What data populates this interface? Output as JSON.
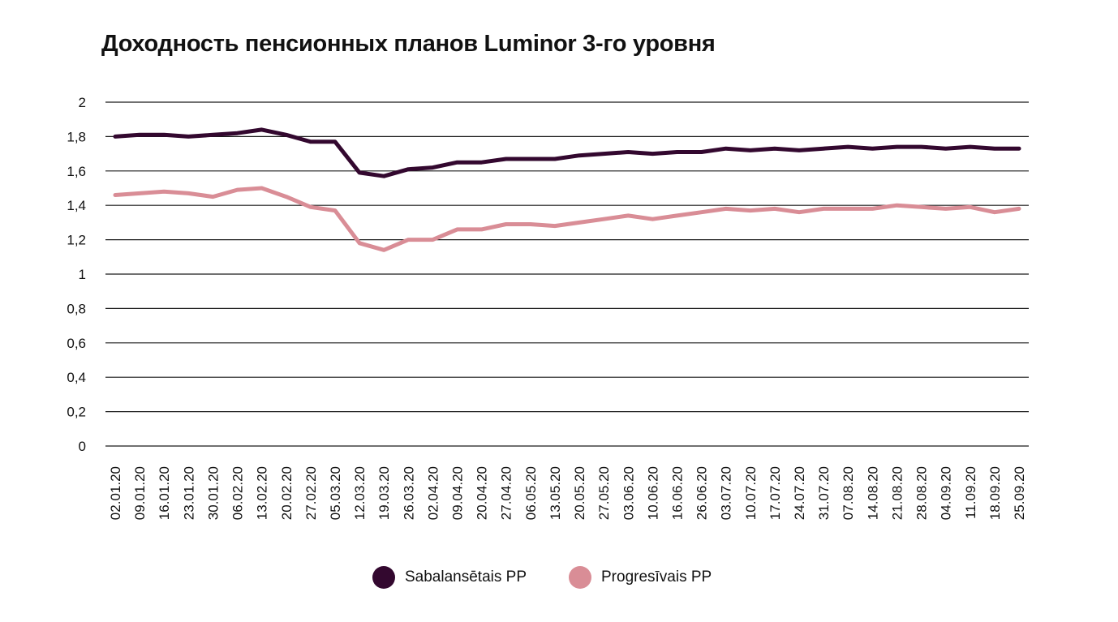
{
  "colors": {
    "series_dark": "#33082f",
    "series_light": "#d98d96",
    "gridline": "#1a1a1a",
    "text": "#111111"
  },
  "chart_data": {
    "type": "line",
    "title": "Доходность пенсионных планов Luminor 3-го уровня",
    "xlabel": "",
    "ylabel": "",
    "ylim": [
      0,
      2
    ],
    "yticks": [
      "0",
      "0,2",
      "0,4",
      "0,6",
      "0,8",
      "1",
      "1,2",
      "1,4",
      "1,6",
      "1,8",
      "2"
    ],
    "grid": true,
    "legend_position": "bottom",
    "x": [
      "02.01.20",
      "09.01.20",
      "16.01.20",
      "23.01.20",
      "30.01.20",
      "06.02.20",
      "13.02.20",
      "20.02.20",
      "27.02.20",
      "05.03.20",
      "12.03.20",
      "19.03.20",
      "26.03.20",
      "02.04.20",
      "09.04.20",
      "20.04.20",
      "27.04.20",
      "06.05.20",
      "13.05.20",
      "20.05.20",
      "27.05.20",
      "03.06.20",
      "10.06.20",
      "16.06.20",
      "26.06.20",
      "03.07.20",
      "10.07.20",
      "17.07.20",
      "24.07.20",
      "31.07.20",
      "07.08.20",
      "14.08.20",
      "21.08.20",
      "28.08.20",
      "04.09.20",
      "11.09.20",
      "18.09.20",
      "25.09.20"
    ],
    "series": [
      {
        "name": "Sabalansētais PP",
        "color": "#33082f",
        "values": [
          1.8,
          1.81,
          1.81,
          1.8,
          1.81,
          1.82,
          1.84,
          1.81,
          1.77,
          1.77,
          1.59,
          1.57,
          1.61,
          1.62,
          1.65,
          1.65,
          1.67,
          1.67,
          1.67,
          1.69,
          1.7,
          1.71,
          1.7,
          1.71,
          1.71,
          1.73,
          1.72,
          1.73,
          1.72,
          1.73,
          1.74,
          1.73,
          1.74,
          1.74,
          1.73,
          1.74,
          1.73,
          1.73
        ]
      },
      {
        "name": "Progresīvais PP",
        "color": "#d98d96",
        "values": [
          1.46,
          1.47,
          1.48,
          1.47,
          1.45,
          1.49,
          1.5,
          1.45,
          1.39,
          1.37,
          1.18,
          1.14,
          1.2,
          1.2,
          1.26,
          1.26,
          1.29,
          1.29,
          1.28,
          1.3,
          1.32,
          1.34,
          1.32,
          1.34,
          1.36,
          1.38,
          1.37,
          1.38,
          1.36,
          1.38,
          1.38,
          1.38,
          1.4,
          1.39,
          1.38,
          1.39,
          1.36,
          1.38
        ]
      }
    ]
  }
}
